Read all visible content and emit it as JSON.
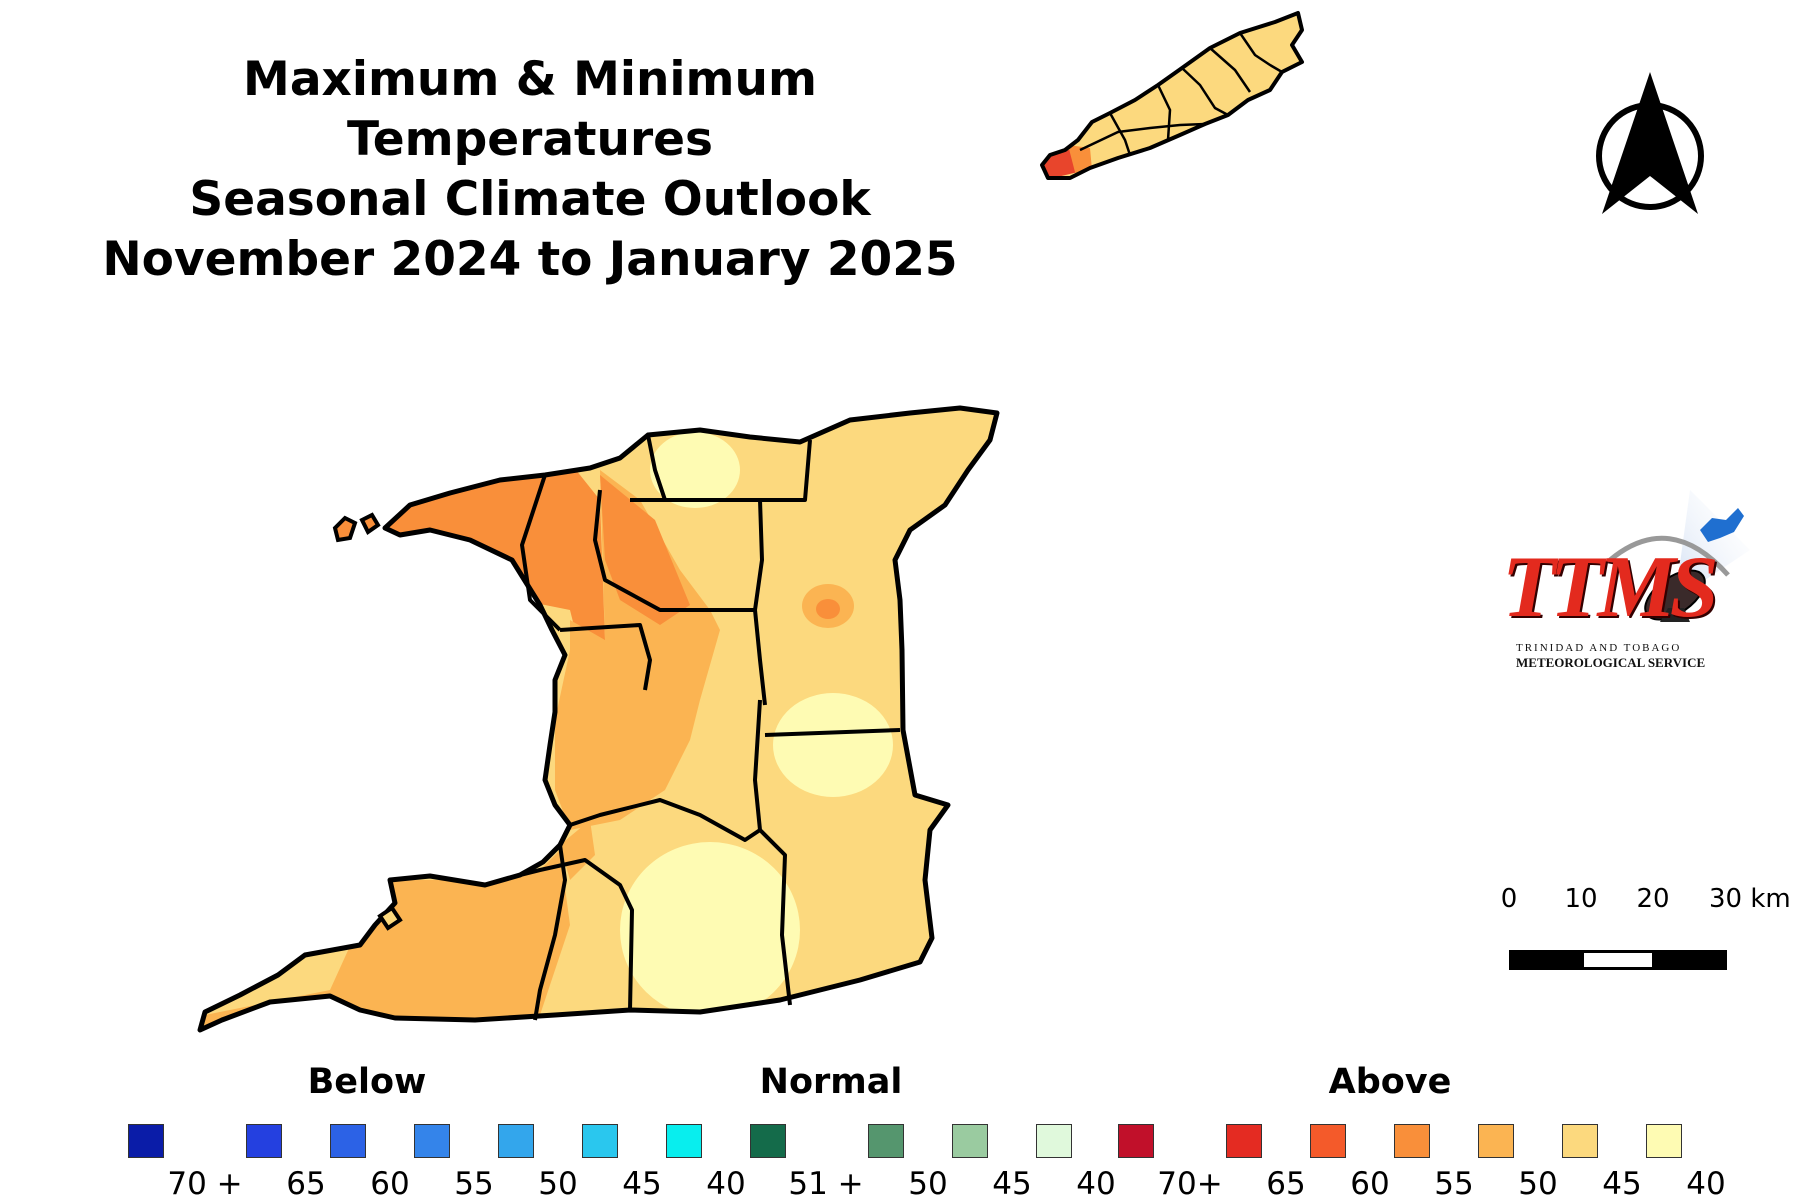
{
  "title": {
    "lines": [
      "Maximum & Minimum",
      "Temperatures",
      "Seasonal Climate Outlook",
      "November 2024 to January 2025"
    ]
  },
  "map": {
    "islands": [
      "Trinidad",
      "Tobago"
    ],
    "colors": {
      "above_65": "#e8452c",
      "above_55": "#f98f3a",
      "above_50": "#fbb452",
      "above_45": "#fcd97e",
      "above_40": "#fefbb3",
      "boundary": "#000000"
    },
    "north_arrow_icon": "north-arrow-icon"
  },
  "scale_bar": {
    "ticks": [
      "0",
      "10",
      "20",
      "30 km"
    ]
  },
  "logo": {
    "mark": "TTMS",
    "line1": "TRINIDAD AND TOBAGO",
    "line2": "METEOROLOGICAL SERVICE"
  },
  "legend": {
    "groups": [
      {
        "heading": "Below",
        "items": [
          {
            "label": "70 +",
            "color": "#0a1ca8"
          },
          {
            "label": "65",
            "color": "#2440e0"
          },
          {
            "label": "60",
            "color": "#2c62e6"
          },
          {
            "label": "55",
            "color": "#3484ea"
          },
          {
            "label": "50",
            "color": "#33a6ec"
          },
          {
            "label": "45",
            "color": "#2ac7ee"
          },
          {
            "label": "40",
            "color": "#08eeee"
          }
        ]
      },
      {
        "heading": "Normal",
        "items": [
          {
            "label": "51 +",
            "color": "#146b4a"
          },
          {
            "label": "50",
            "color": "#55966e"
          },
          {
            "label": "45",
            "color": "#9acba0"
          },
          {
            "label": "40",
            "color": "#e0f9dc"
          }
        ]
      },
      {
        "heading": "Above",
        "items": [
          {
            "label": "70+",
            "color": "#c1102a"
          },
          {
            "label": "65",
            "color": "#e42b22"
          },
          {
            "label": "60",
            "color": "#f45a2a"
          },
          {
            "label": "55",
            "color": "#f98f3a"
          },
          {
            "label": "50",
            "color": "#fbb452"
          },
          {
            "label": "45",
            "color": "#fcd97e"
          },
          {
            "label": "40",
            "color": "#fefbb3"
          }
        ]
      }
    ]
  }
}
